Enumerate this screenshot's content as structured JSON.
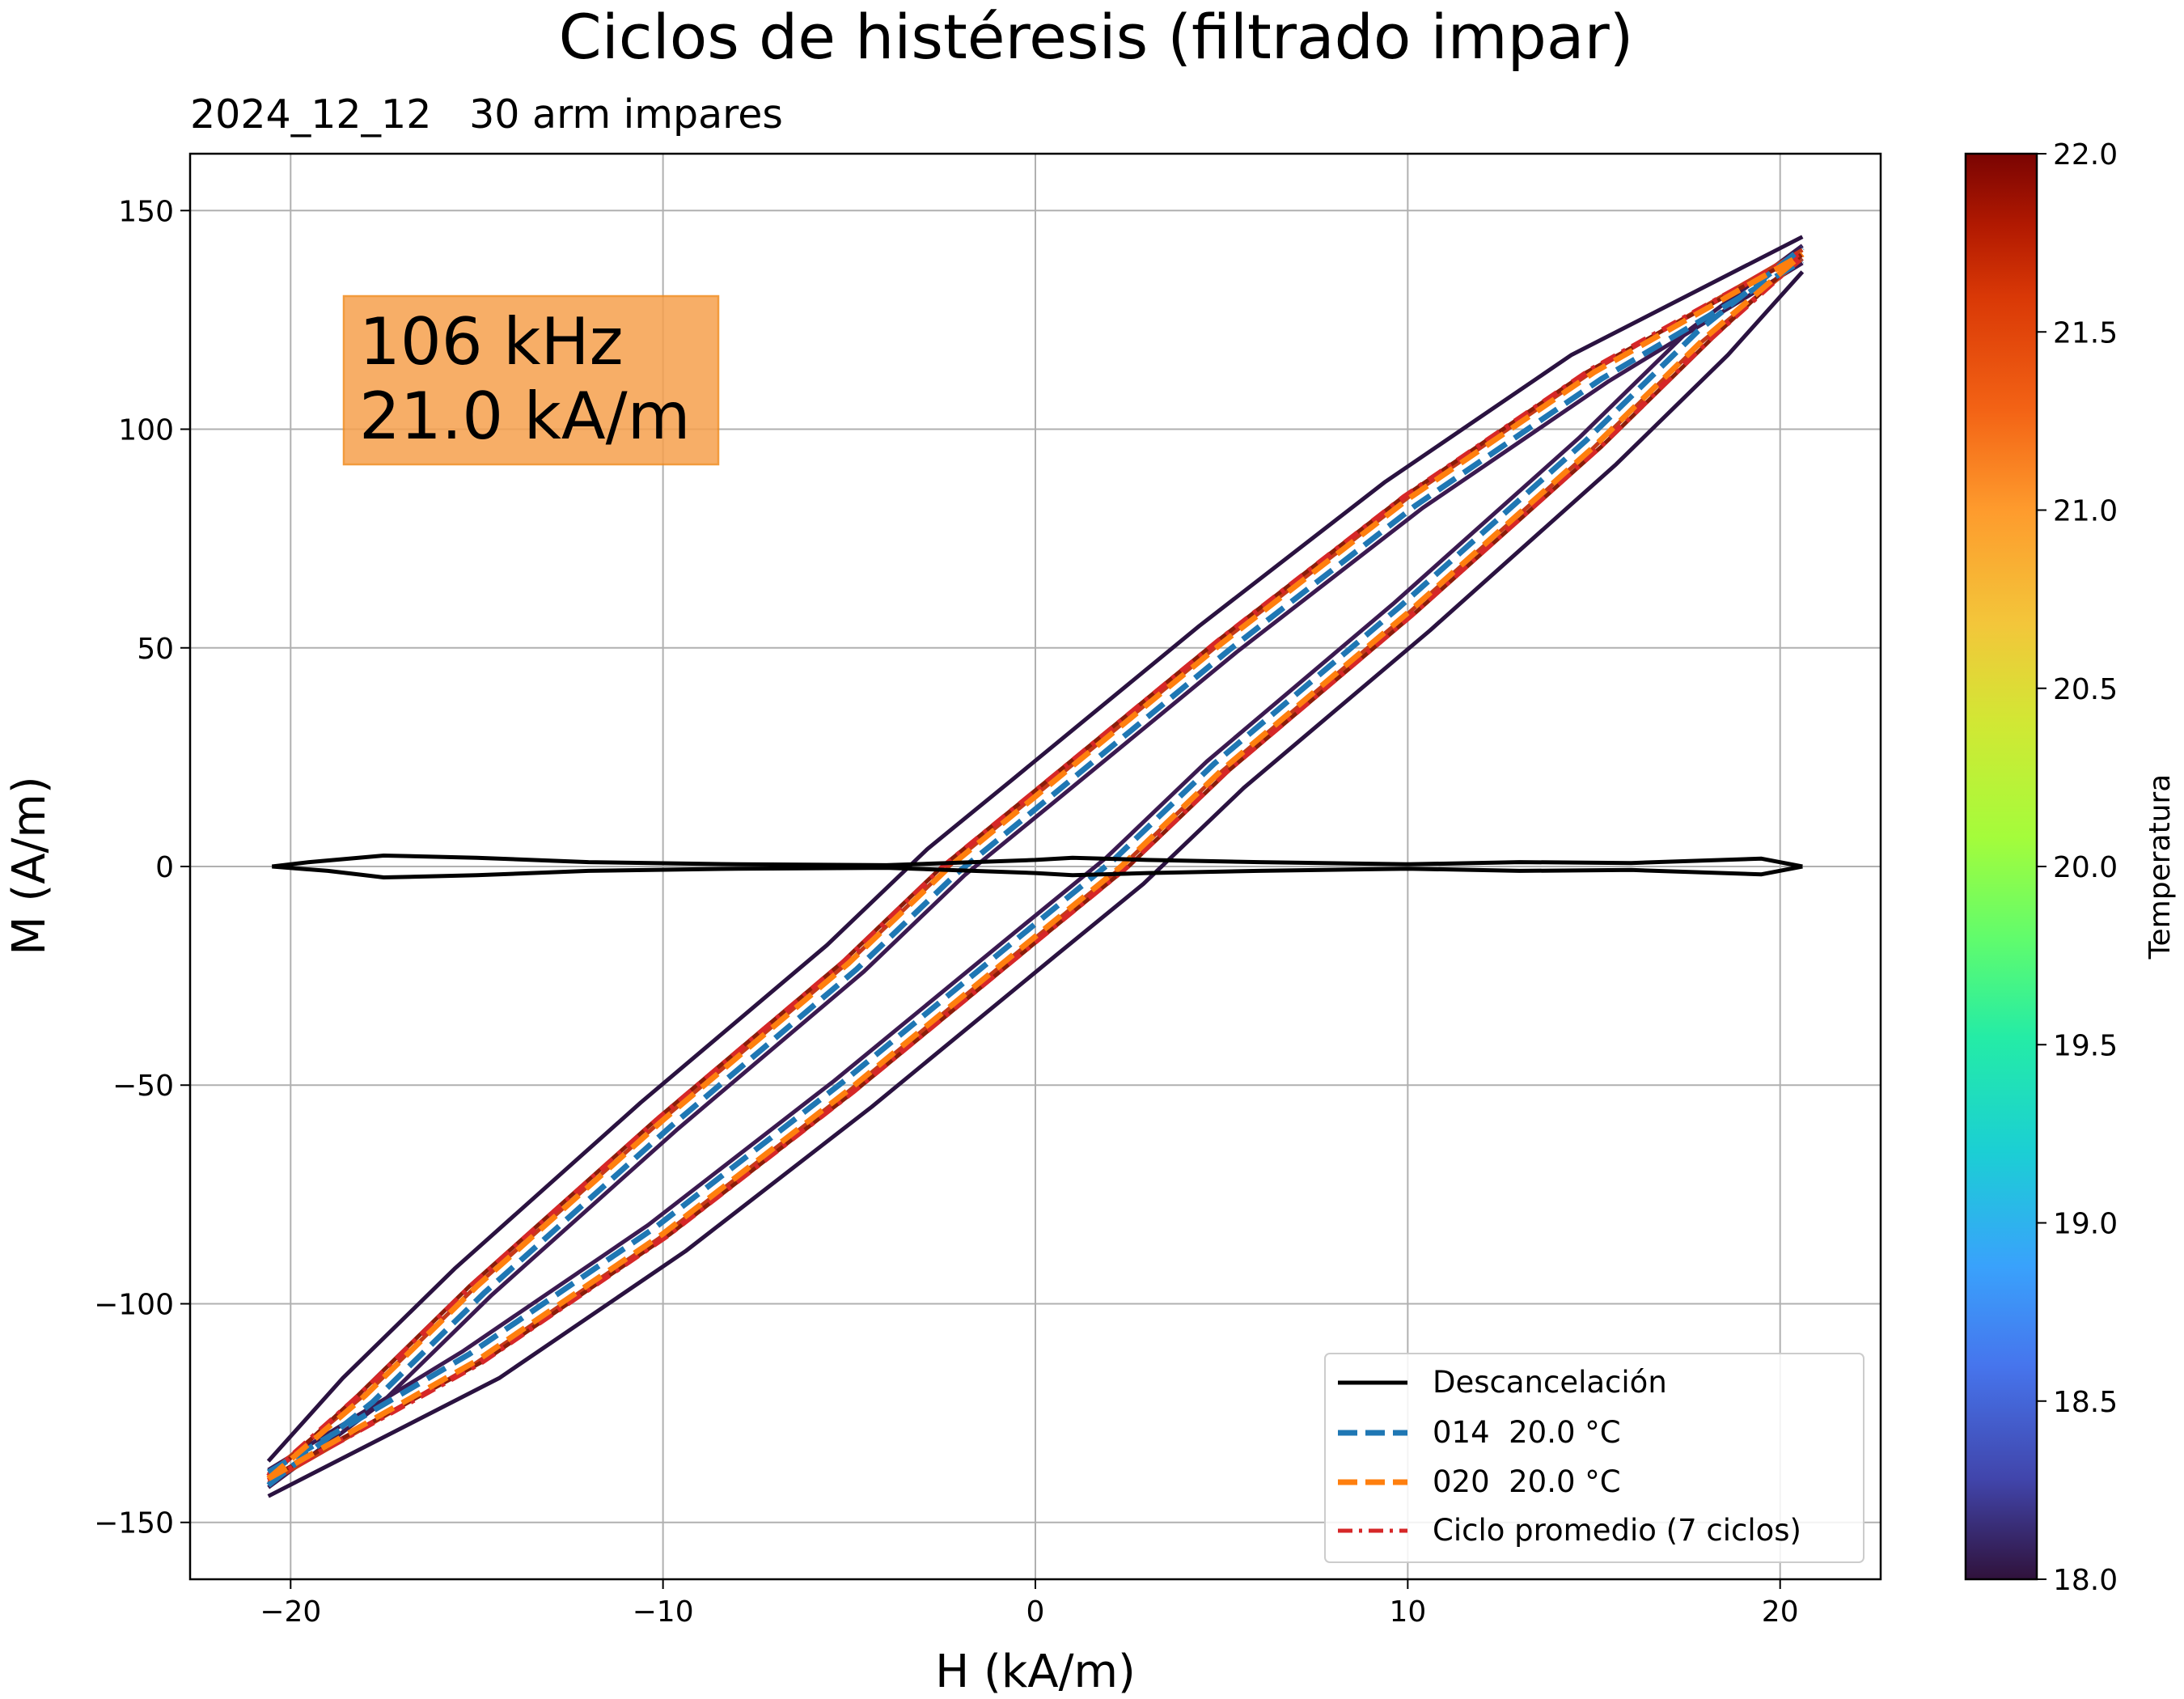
{
  "chart_data": {
    "type": "line",
    "title": "Ciclos de histéresis (filtrado impar)",
    "subtitle": "2024_12_12   30 arm impares",
    "xlabel": "H (kA/m)",
    "ylabel": "M (A/m)",
    "xlim": [
      -22.7,
      22.7
    ],
    "ylim": [
      -163,
      163
    ],
    "xticks": [
      -20,
      -10,
      0,
      10,
      20
    ],
    "yticks": [
      -150,
      -100,
      -50,
      0,
      50,
      100,
      150
    ],
    "xtick_labels": [
      "−20",
      "−10",
      "0",
      "10",
      "20"
    ],
    "ytick_labels": [
      "−150",
      "−100",
      "−50",
      "0",
      "50",
      "100",
      "150"
    ],
    "grid": true,
    "annotation": {
      "line1": "106 kHz",
      "line2": "21.0 kA/m",
      "color": "#f6a04d"
    },
    "colorbar": {
      "label": "Temperatura",
      "min": 18.0,
      "max": 22.0,
      "tick_labels": [
        "18.0",
        "18.5",
        "19.0",
        "19.5",
        "20.0",
        "20.5",
        "21.0",
        "21.5",
        "22.0"
      ],
      "colormap": "turbo"
    },
    "legend": {
      "position": "lower-right",
      "entries": [
        {
          "label": "Descancelación",
          "color": "#000000",
          "style": "solid"
        },
        {
          "label": "014  20.0 °C",
          "color": "#1f77b4",
          "style": "dashed"
        },
        {
          "label": "020  20.0 °C",
          "color": "#ff7f0e",
          "style": "dashed"
        },
        {
          "label": "Ciclo promedio (7 ciclos)",
          "color": "#d62728",
          "style": "dashdot"
        }
      ]
    },
    "hysteresis_loops": {
      "upper_branch": [
        [
          -20.6,
          -140
        ],
        [
          -18,
          -121
        ],
        [
          -15,
          -96
        ],
        [
          -10,
          -58
        ],
        [
          -5,
          -22
        ],
        [
          -2.3,
          0
        ],
        [
          0,
          16
        ],
        [
          5,
          51
        ],
        [
          10,
          84
        ],
        [
          15,
          113
        ],
        [
          20.6,
          140
        ]
      ],
      "lower_branch": [
        [
          -20.6,
          -140
        ],
        [
          -15,
          -113
        ],
        [
          -10,
          -84
        ],
        [
          -5,
          -51
        ],
        [
          0,
          -16
        ],
        [
          2.3,
          0
        ],
        [
          5,
          22
        ],
        [
          10,
          58
        ],
        [
          15,
          96
        ],
        [
          18,
          121
        ],
        [
          20.6,
          140
        ]
      ]
    },
    "series": [
      {
        "name": "Descancelación",
        "color": "#000000",
        "style": "solid",
        "upper": [
          [
            -20.5,
            0
          ],
          [
            -19.5,
            1
          ],
          [
            -17.5,
            2.5
          ],
          [
            -15,
            2
          ],
          [
            -12,
            1
          ],
          [
            -8,
            0.5
          ],
          [
            -4,
            0.3
          ],
          [
            0,
            1.5
          ],
          [
            1,
            2
          ],
          [
            3,
            1.5
          ],
          [
            6,
            1
          ],
          [
            10,
            0.5
          ],
          [
            13,
            1
          ],
          [
            16,
            0.8
          ],
          [
            19.5,
            1.8
          ],
          [
            20.6,
            0
          ]
        ],
        "lower": [
          [
            -20.5,
            0
          ],
          [
            -19,
            -1
          ],
          [
            -17.5,
            -2.5
          ],
          [
            -15,
            -2
          ],
          [
            -12,
            -1
          ],
          [
            -8,
            -0.5
          ],
          [
            -4,
            -0.3
          ],
          [
            0,
            -1.5
          ],
          [
            1,
            -2
          ],
          [
            3,
            -1.5
          ],
          [
            6,
            -1
          ],
          [
            10,
            -0.5
          ],
          [
            13,
            -1
          ],
          [
            16,
            -0.8
          ],
          [
            19.5,
            -1.8
          ],
          [
            20.6,
            0
          ]
        ]
      },
      {
        "name": "014  20.0 °C",
        "color": "#1f77b4",
        "style": "dashed",
        "h_shift": 0.2,
        "m_offset": -1.5
      },
      {
        "name": "020  20.0 °C",
        "color": "#ff7f0e",
        "style": "dashed",
        "h_shift": 0.0,
        "m_offset": 0
      },
      {
        "name": "Ciclo promedio (7 ciclos)",
        "color": "#d62728",
        "style": "dashdot",
        "h_shift": -0.1,
        "m_offset": 0.5
      },
      {
        "name": "",
        "color": "#2a1240",
        "style": "solid",
        "h_shift": -0.6,
        "m_offset": 4
      },
      {
        "name": "",
        "color": "#3b1a50",
        "style": "solid",
        "h_shift": 0.4,
        "m_offset": -2
      },
      {
        "name": "",
        "color": "#c63a17",
        "style": "solid",
        "h_shift": 0.1,
        "m_offset": 1
      },
      {
        "name": "",
        "color": "#8c1c0a",
        "style": "solid",
        "h_shift": -0.2,
        "m_offset": 0
      }
    ]
  }
}
